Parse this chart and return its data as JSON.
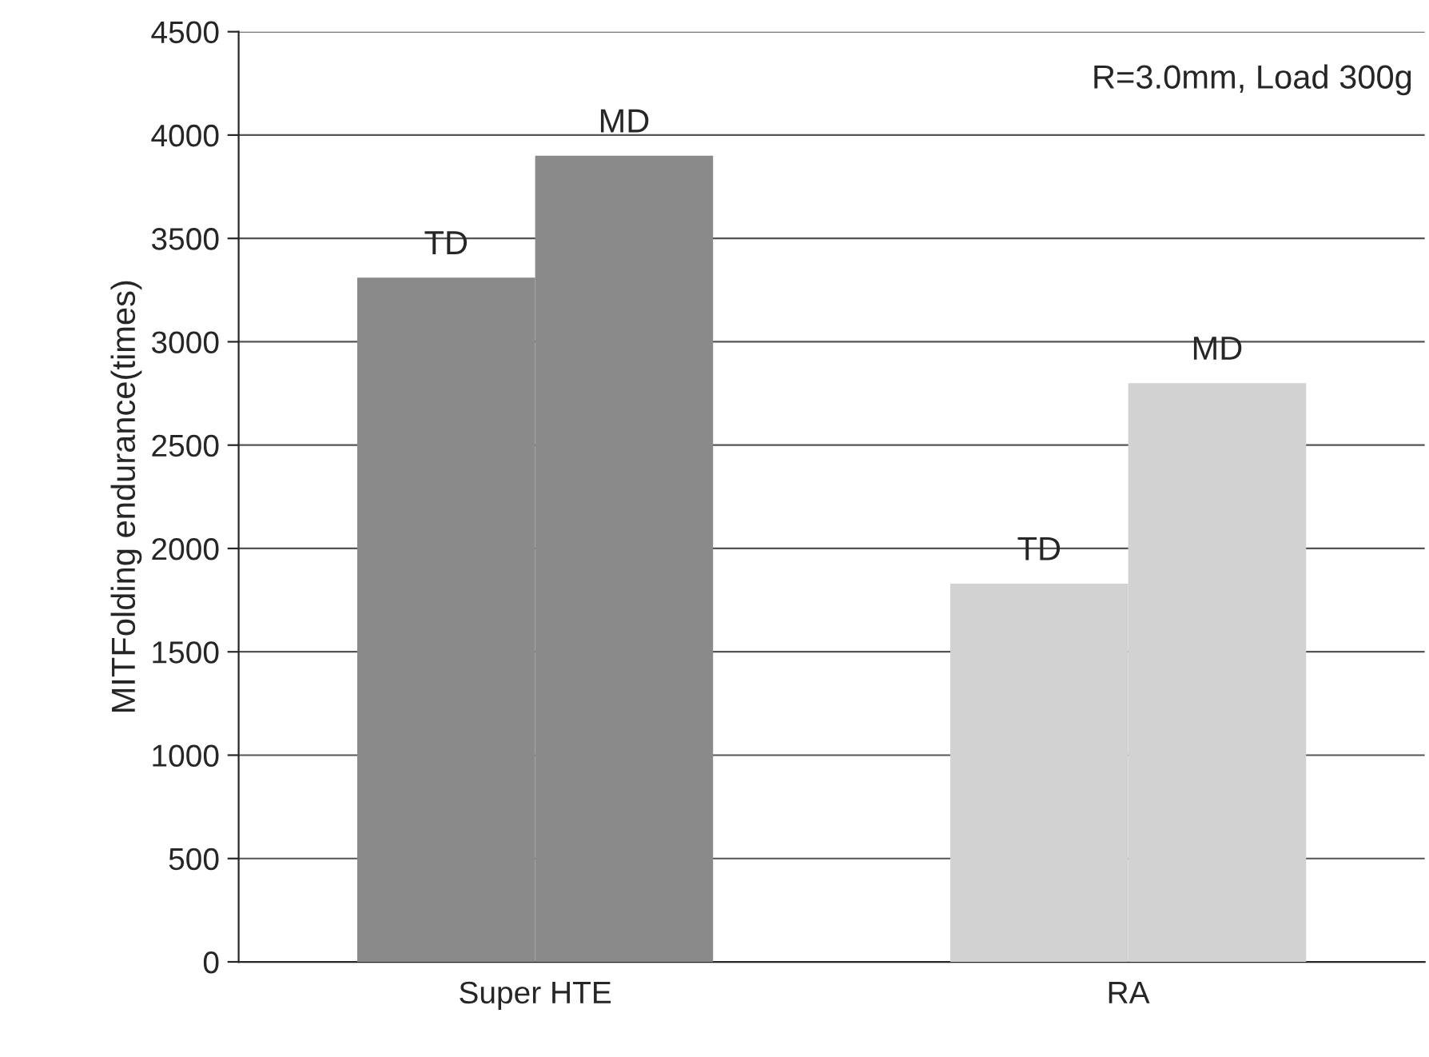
{
  "chart_data": {
    "type": "bar",
    "ylabel": "MITFolding endurance(times)",
    "categories": [
      "Super HTE",
      "RA"
    ],
    "series": [
      {
        "name": "TD",
        "colors": [
          "#8a8a8a",
          "#d2d2d2"
        ],
        "values": [
          3310,
          1830
        ]
      },
      {
        "name": "MD",
        "colors": [
          "#8a8a8a",
          "#d2d2d2"
        ],
        "values": [
          3900,
          2800
        ]
      }
    ],
    "ylim": [
      0,
      4500
    ],
    "yticks": [
      0,
      500,
      1000,
      1500,
      2000,
      2500,
      3000,
      3500,
      4000,
      4500
    ],
    "grid": "y",
    "legend": false,
    "annotations": [
      "R=3.0mm, Load 300g"
    ]
  }
}
